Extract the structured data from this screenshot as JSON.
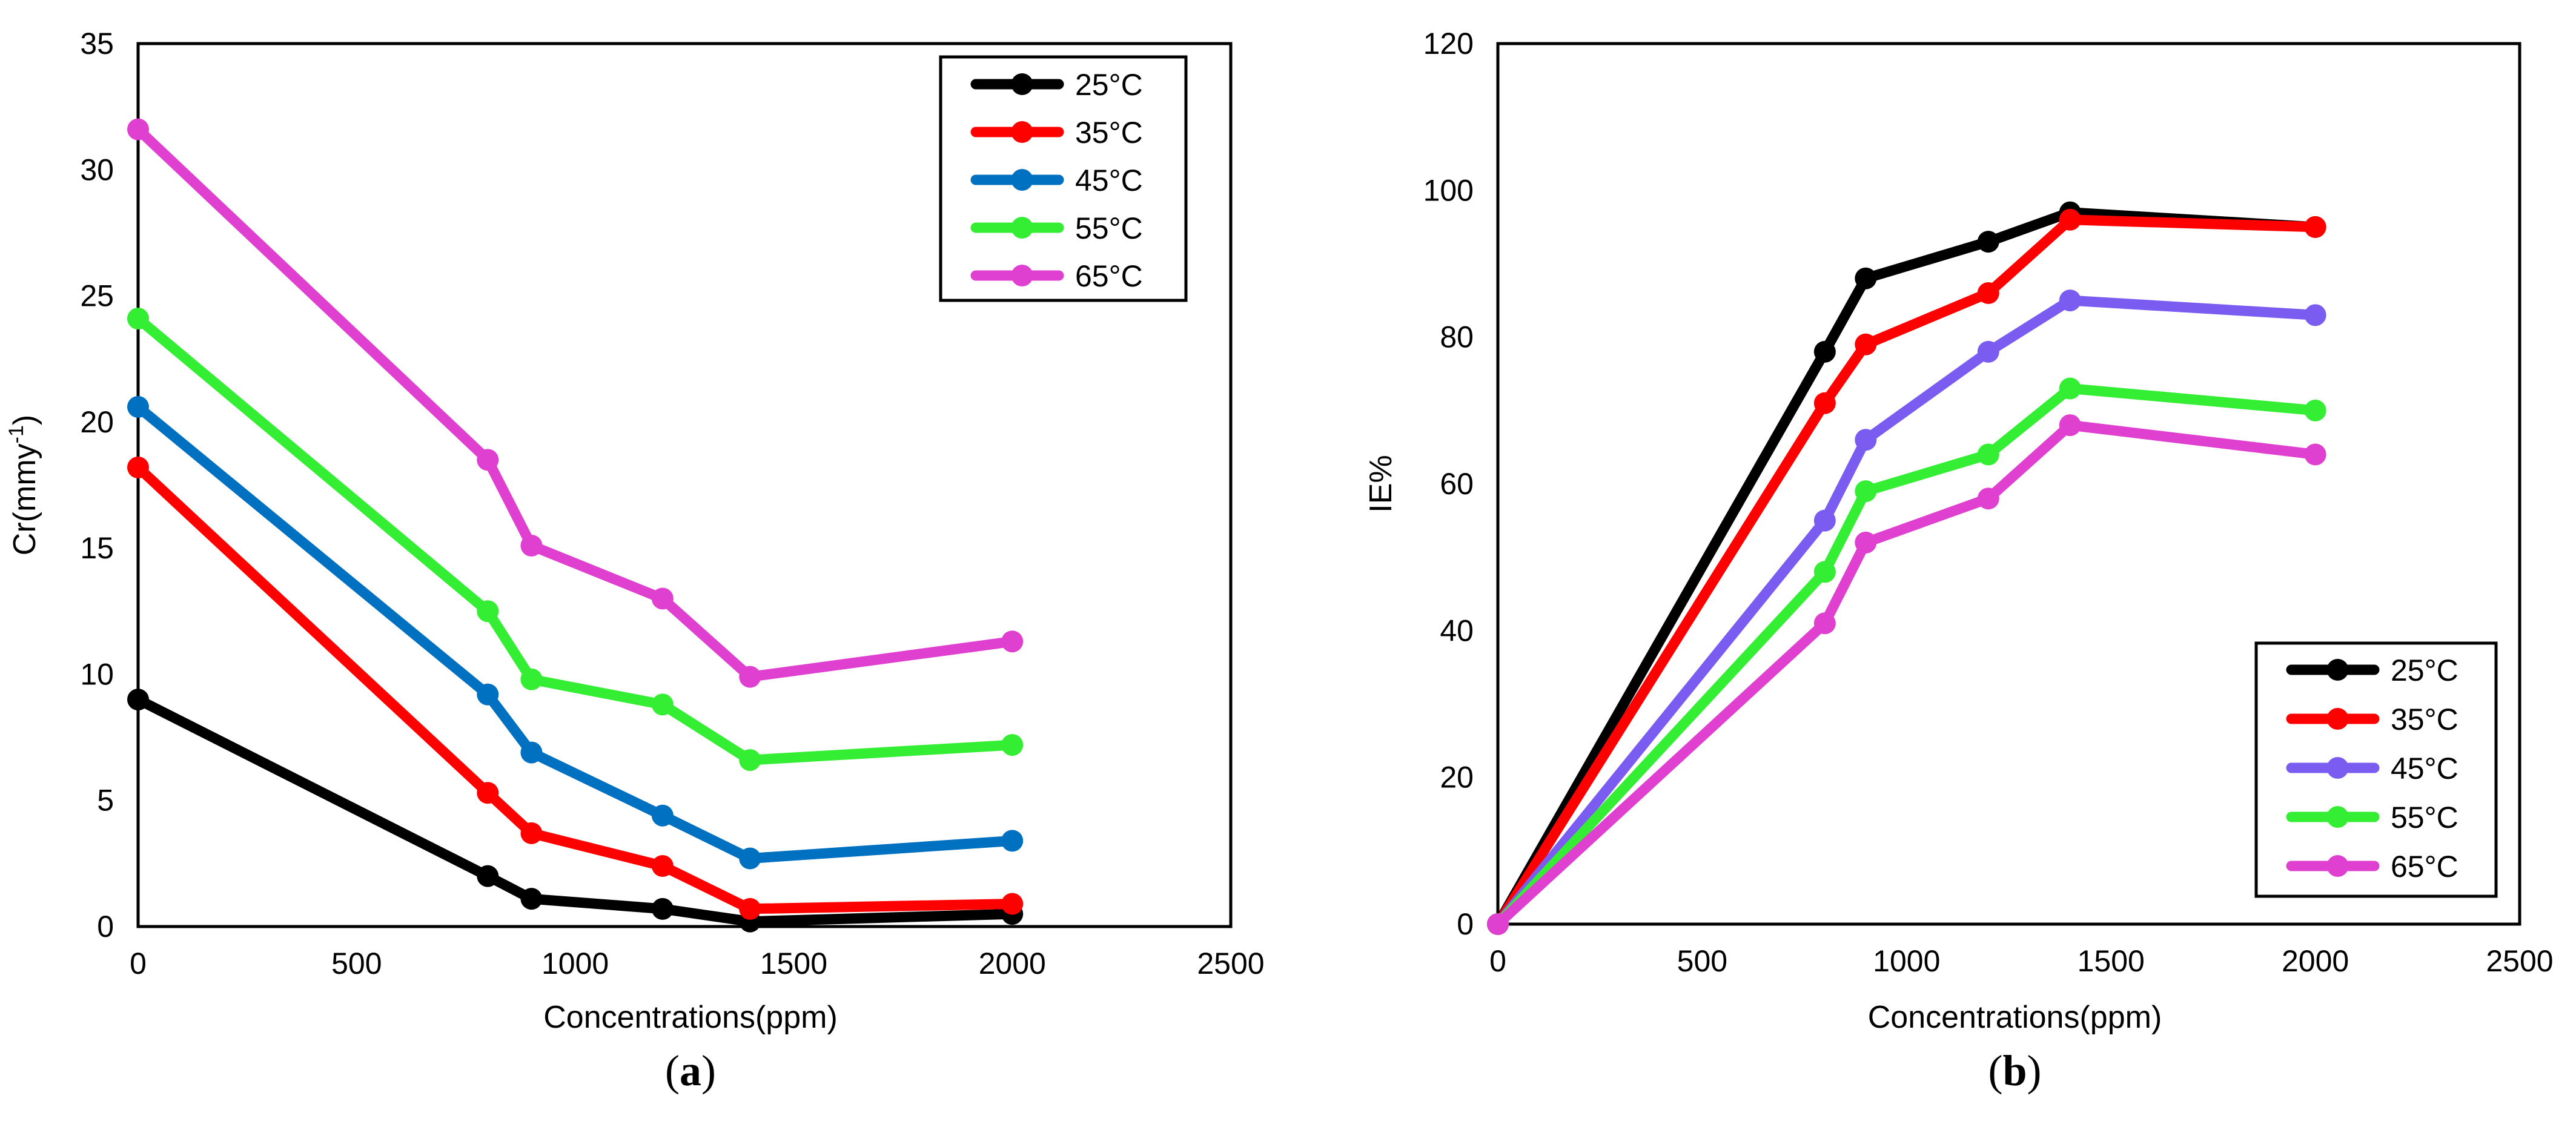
{
  "chart_data": [
    {
      "panel": "a",
      "panel_label": "a",
      "type": "line",
      "title": "",
      "xlabel": "Concentrations(ppm)",
      "ylabel_main": "Cr(mmy",
      "ylabel_sup": "-1",
      "ylabel_close": ")",
      "xlim": [
        0,
        2500
      ],
      "ylim": [
        0,
        35
      ],
      "xticks": [
        0,
        500,
        1000,
        1500,
        2000,
        2500
      ],
      "yticks": [
        0,
        5,
        10,
        15,
        20,
        25,
        30,
        35
      ],
      "grid": false,
      "legend_position": "top-right",
      "x": [
        0,
        800,
        900,
        1200,
        1400,
        2000
      ],
      "series": [
        {
          "name": "25°C",
          "color": "#000000",
          "values": [
            9.0,
            2.0,
            1.1,
            0.7,
            0.2,
            0.5
          ]
        },
        {
          "name": "35°C",
          "color": "#ff0000",
          "values": [
            18.2,
            5.3,
            3.7,
            2.4,
            0.7,
            0.9
          ]
        },
        {
          "name": "45°C",
          "color": "#0070c0",
          "values": [
            20.6,
            9.2,
            6.9,
            4.4,
            2.7,
            3.4
          ]
        },
        {
          "name": "55°C",
          "color": "#33ee33",
          "values": [
            24.1,
            12.5,
            9.8,
            8.8,
            6.6,
            7.2
          ]
        },
        {
          "name": "65°C",
          "color": "#e040d0",
          "values": [
            31.6,
            18.5,
            15.1,
            13.0,
            9.9,
            11.3
          ]
        }
      ]
    },
    {
      "panel": "b",
      "panel_label": "b",
      "type": "line",
      "title": "",
      "xlabel": "Concentrations(ppm)",
      "ylabel_main": "IE%",
      "ylabel_sup": "",
      "ylabel_close": "",
      "xlim": [
        0,
        2500
      ],
      "ylim": [
        0,
        120
      ],
      "xticks": [
        0,
        500,
        1000,
        1500,
        2000,
        2500
      ],
      "yticks": [
        0,
        20,
        40,
        60,
        80,
        100,
        120
      ],
      "grid": false,
      "legend_position": "bottom-right",
      "x": [
        0,
        800,
        900,
        1200,
        1400,
        2000
      ],
      "series": [
        {
          "name": "25°C",
          "color": "#000000",
          "values": [
            0,
            78,
            88,
            93,
            97,
            95
          ]
        },
        {
          "name": "35°C",
          "color": "#ff0000",
          "values": [
            0,
            71,
            79,
            86,
            96,
            95
          ]
        },
        {
          "name": "45°C",
          "color": "#7b5cf0",
          "values": [
            0,
            55,
            66,
            78,
            85,
            83
          ]
        },
        {
          "name": "55°C",
          "color": "#33ee33",
          "values": [
            0,
            48,
            59,
            64,
            73,
            70
          ]
        },
        {
          "name": "65°C",
          "color": "#e040d0",
          "values": [
            0,
            41,
            52,
            58,
            68,
            64
          ]
        }
      ]
    }
  ]
}
